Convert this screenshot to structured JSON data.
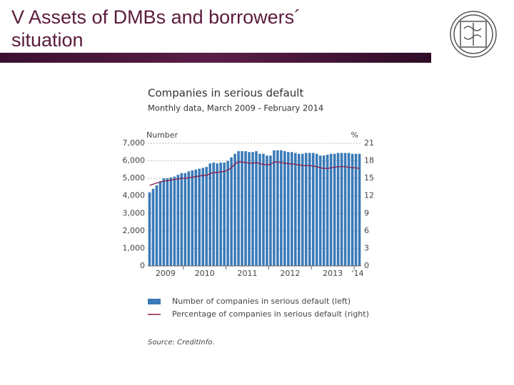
{
  "slide_title": "V Assets of DMBs and borrowers´ situation",
  "chart_data": {
    "type": "bar-line",
    "title": "Companies in serious default",
    "subtitle": "Monthly data, March 2009 - February 2014",
    "y_label": "Number",
    "y2_label": "%",
    "categories": [
      "2009",
      null,
      null,
      null,
      null,
      null,
      null,
      null,
      null,
      null,
      "2010",
      null,
      null,
      null,
      null,
      null,
      null,
      null,
      null,
      null,
      null,
      null,
      "2011",
      null,
      null,
      null,
      null,
      null,
      null,
      null,
      null,
      null,
      null,
      null,
      "2012",
      null,
      null,
      null,
      null,
      null,
      null,
      null,
      null,
      null,
      null,
      null,
      "2013",
      null,
      null,
      null,
      null,
      null,
      null,
      null,
      null,
      null,
      null,
      null,
      "'14",
      null
    ],
    "series": [
      {
        "name": "Number of companies in serious default (left)",
        "color": "#3a7ab8",
        "type": "bar",
        "values": [
          4200,
          4400,
          4600,
          4800,
          5000,
          5000,
          5050,
          5100,
          5200,
          5300,
          5300,
          5400,
          5450,
          5500,
          5550,
          5600,
          5650,
          5850,
          5900,
          5850,
          5900,
          5900,
          6000,
          6200,
          6400,
          6550,
          6550,
          6550,
          6500,
          6500,
          6550,
          6400,
          6400,
          6300,
          6300,
          6600,
          6600,
          6600,
          6550,
          6500,
          6500,
          6450,
          6400,
          6400,
          6450,
          6450,
          6450,
          6400,
          6300,
          6300,
          6350,
          6400,
          6400,
          6450,
          6450,
          6450,
          6450,
          6400,
          6400,
          6400
        ]
      },
      {
        "name": "Percentage of companies in serious default (right)",
        "color": "#8b1a4a",
        "type": "line",
        "axis": "y2",
        "values": [
          13.8,
          14.0,
          14.2,
          14.4,
          14.5,
          14.6,
          14.7,
          14.8,
          14.9,
          15.0,
          15.0,
          15.1,
          15.2,
          15.3,
          15.4,
          15.5,
          15.5,
          15.8,
          16.0,
          16.0,
          16.1,
          16.2,
          16.4,
          16.8,
          17.5,
          17.8,
          17.8,
          17.7,
          17.6,
          17.6,
          17.7,
          17.5,
          17.4,
          17.3,
          17.4,
          17.8,
          17.8,
          17.7,
          17.6,
          17.5,
          17.5,
          17.4,
          17.3,
          17.2,
          17.2,
          17.2,
          17.1,
          17.0,
          16.8,
          16.7,
          16.7,
          16.8,
          16.9,
          17.0,
          17.0,
          17.0,
          16.9,
          16.8,
          16.8,
          16.7
        ]
      }
    ],
    "ylim": [
      0,
      7000
    ],
    "yticks": [
      0,
      {
        "value": 1000,
        "label": "1,000"
      },
      {
        "value": 2000,
        "label": "2,000"
      },
      {
        "value": 3000,
        "label": "3,000"
      },
      {
        "value": 4000,
        "label": "4,000"
      },
      {
        "value": 5000,
        "label": "5,000"
      },
      {
        "value": 6000,
        "label": "6,000"
      },
      {
        "value": 7000,
        "label": "7,000"
      }
    ],
    "y2lim": [
      0,
      21
    ],
    "y2ticks": [
      0,
      3,
      6,
      9,
      12,
      15,
      18,
      21
    ],
    "grid": true,
    "source": "Source: CreditInfo."
  }
}
